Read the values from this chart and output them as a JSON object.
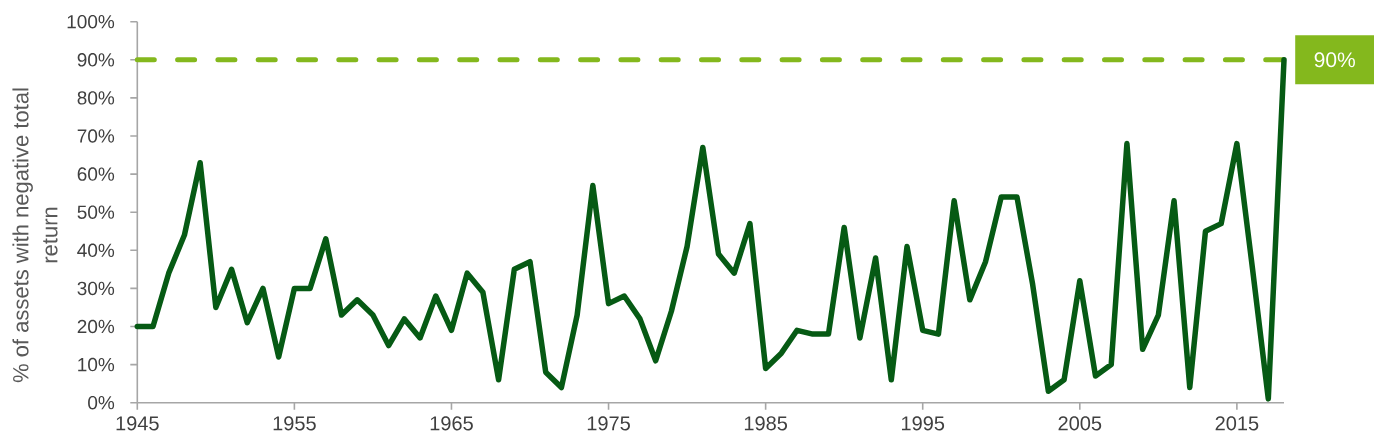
{
  "chart_data": {
    "type": "line",
    "ylabel": "% of assets with negative total return",
    "x": [
      1945,
      1946,
      1947,
      1948,
      1949,
      1950,
      1951,
      1952,
      1953,
      1954,
      1955,
      1956,
      1957,
      1958,
      1959,
      1960,
      1961,
      1962,
      1963,
      1964,
      1965,
      1966,
      1967,
      1968,
      1969,
      1970,
      1971,
      1972,
      1973,
      1974,
      1975,
      1976,
      1977,
      1978,
      1979,
      1980,
      1981,
      1982,
      1983,
      1984,
      1985,
      1986,
      1987,
      1988,
      1989,
      1990,
      1991,
      1992,
      1993,
      1994,
      1995,
      1996,
      1997,
      1998,
      1999,
      2000,
      2001,
      2002,
      2003,
      2004,
      2005,
      2006,
      2007,
      2008,
      2009,
      2010,
      2011,
      2012,
      2013,
      2014,
      2015,
      2016,
      2017,
      2018
    ],
    "series": [
      {
        "color": "#065a14",
        "values": [
          20,
          20,
          34,
          44,
          63,
          25,
          35,
          21,
          30,
          12,
          30,
          30,
          43,
          23,
          27,
          23,
          15,
          22,
          17,
          28,
          19,
          34,
          29,
          6,
          35,
          37,
          8,
          4,
          23,
          57,
          26,
          28,
          22,
          11,
          24,
          41,
          67,
          39,
          34,
          47,
          9,
          13,
          19,
          18,
          18,
          46,
          17,
          38,
          6,
          41,
          19,
          18,
          53,
          27,
          37,
          54,
          54,
          31,
          3,
          6,
          32,
          7,
          10,
          68,
          14,
          23,
          53,
          4,
          45,
          47,
          68,
          35,
          1,
          90
        ]
      }
    ],
    "xlim": [
      1945,
      2018
    ],
    "ylim": [
      0,
      100
    ],
    "xticks": [
      1945,
      1955,
      1965,
      1975,
      1985,
      1995,
      2005,
      2015
    ],
    "yticks": [
      {
        "value": 0,
        "label": "0%"
      },
      {
        "value": 10,
        "label": "10%"
      },
      {
        "value": 20,
        "label": "20%"
      },
      {
        "value": 30,
        "label": "30%"
      },
      {
        "value": 40,
        "label": "40%"
      },
      {
        "value": 50,
        "label": "50%"
      },
      {
        "value": 60,
        "label": "60%"
      },
      {
        "value": 70,
        "label": "70%"
      },
      {
        "value": 80,
        "label": "80%"
      },
      {
        "value": 90,
        "label": "90%"
      },
      {
        "value": 100,
        "label": "100%"
      }
    ],
    "ref_lines": [
      {
        "axis": "y",
        "value": 90,
        "label": "90%",
        "color": "#84b81d",
        "line_style": "dashed"
      }
    ]
  }
}
